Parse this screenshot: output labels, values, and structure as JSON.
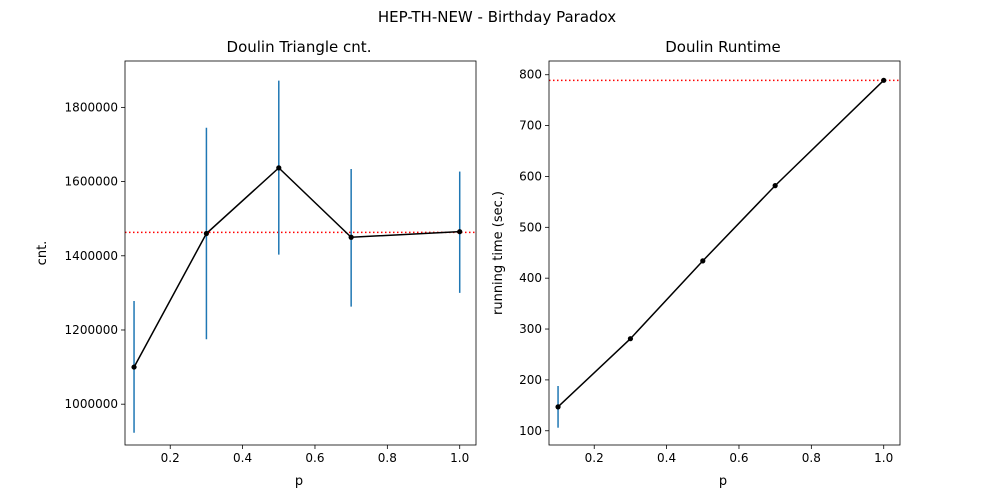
{
  "figure": {
    "suptitle": "HEP-TH-NEW - Birthday Paradox"
  },
  "chart_data": [
    {
      "type": "line",
      "title": "Doulin Triangle cnt.",
      "xlabel": "p",
      "ylabel": "cnt.",
      "xlim": [
        0.075,
        1.045
      ],
      "ylim": [
        890000,
        1925000
      ],
      "xticks": [
        0.2,
        0.4,
        0.6,
        0.8,
        1.0
      ],
      "xtick_labels": [
        "0.2",
        "0.4",
        "0.6",
        "0.8",
        "1.0"
      ],
      "yticks": [
        1000000,
        1200000,
        1400000,
        1600000,
        1800000
      ],
      "ytick_labels": [
        "1000000",
        "1200000",
        "1400000",
        "1600000",
        "1800000"
      ],
      "grid": false,
      "series": [
        {
          "x": [
            0.1,
            0.3,
            0.5,
            0.7,
            1.0
          ],
          "y": [
            1100000,
            1460000,
            1637000,
            1450000,
            1465000
          ],
          "err_low": [
            923000,
            1175000,
            1403000,
            1263000,
            1300000
          ],
          "err_high": [
            1278000,
            1745000,
            1872000,
            1634000,
            1627000
          ],
          "color": "#000000",
          "errcolor": "#1f77b4"
        }
      ],
      "reference_line": {
        "y": 1463000,
        "color": "#ff0000",
        "style": "dotted"
      }
    },
    {
      "type": "line",
      "title": "Doulin Runtime",
      "xlabel": "p",
      "ylabel": "running time (sec.)",
      "xlim": [
        0.075,
        1.045
      ],
      "ylim": [
        72,
        827
      ],
      "xticks": [
        0.2,
        0.4,
        0.6,
        0.8,
        1.0
      ],
      "xtick_labels": [
        "0.2",
        "0.4",
        "0.6",
        "0.8",
        "1.0"
      ],
      "yticks": [
        100,
        200,
        300,
        400,
        500,
        600,
        700,
        800
      ],
      "ytick_labels": [
        "100",
        "200",
        "300",
        "400",
        "500",
        "600",
        "700",
        "800"
      ],
      "grid": false,
      "series": [
        {
          "x": [
            0.1,
            0.3,
            0.5,
            0.7,
            1.0
          ],
          "y": [
            147,
            281,
            434,
            582,
            789
          ],
          "err_low": [
            106,
            281,
            434,
            582,
            789
          ],
          "err_high": [
            188,
            281,
            434,
            582,
            789
          ],
          "color": "#000000",
          "errcolor": "#1f77b4"
        }
      ],
      "reference_line": {
        "y": 789,
        "color": "#ff0000",
        "style": "dotted"
      }
    }
  ]
}
